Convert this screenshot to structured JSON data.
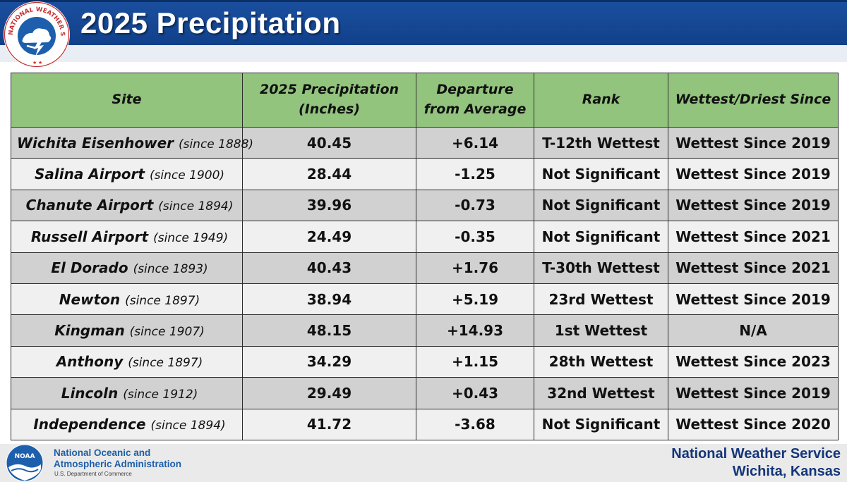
{
  "header": {
    "title": "2025 Precipitation",
    "logo_text": "NATIONAL WEATHER SERVICE"
  },
  "table": {
    "columns": [
      {
        "line1": "Site",
        "line2": ""
      },
      {
        "line1": "2025 Precipitation",
        "line2": "(Inches)"
      },
      {
        "line1": "Departure",
        "line2": "from Average"
      },
      {
        "line1": "Rank",
        "line2": ""
      },
      {
        "line1": "Wettest/Driest Since",
        "line2": ""
      }
    ],
    "rows": [
      {
        "site": "Wichita Eisenhower",
        "since": "(since 1888)",
        "precip": "40.45",
        "departure": "+6.14",
        "rank": "T-12th Wettest",
        "wettest_since": "Wettest Since 2019"
      },
      {
        "site": "Salina Airport",
        "since": "(since 1900)",
        "precip": "28.44",
        "departure": "-1.25",
        "rank": "Not Significant",
        "wettest_since": "Wettest Since 2019"
      },
      {
        "site": "Chanute Airport",
        "since": "(since 1894)",
        "precip": "39.96",
        "departure": "-0.73",
        "rank": "Not Significant",
        "wettest_since": "Wettest Since 2019"
      },
      {
        "site": "Russell Airport",
        "since": "(since 1949)",
        "precip": "24.49",
        "departure": "-0.35",
        "rank": "Not Significant",
        "wettest_since": "Wettest Since 2021"
      },
      {
        "site": "El Dorado",
        "since": "(since 1893)",
        "precip": "40.43",
        "departure": "+1.76",
        "rank": "T-30th Wettest",
        "wettest_since": "Wettest Since 2021"
      },
      {
        "site": "Newton",
        "since": "(since 1897)",
        "precip": "38.94",
        "departure": "+5.19",
        "rank": "23rd Wettest",
        "wettest_since": "Wettest Since 2019"
      },
      {
        "site": "Kingman",
        "since": "(since 1907)",
        "precip": "48.15",
        "departure": "+14.93",
        "rank": "1st Wettest",
        "wettest_since": "N/A"
      },
      {
        "site": "Anthony",
        "since": "(since 1897)",
        "precip": "34.29",
        "departure": "+1.15",
        "rank": "28th Wettest",
        "wettest_since": "Wettest Since 2023"
      },
      {
        "site": "Lincoln",
        "since": "(since 1912)",
        "precip": "29.49",
        "departure": "+0.43",
        "rank": "32nd Wettest",
        "wettest_since": "Wettest Since 2019"
      },
      {
        "site": "Independence",
        "since": "(since 1894)",
        "precip": "41.72",
        "departure": "-3.68",
        "rank": "Not Significant",
        "wettest_since": "Wettest Since 2020"
      }
    ]
  },
  "footer": {
    "noaa_logo_text": "NOAA",
    "noaa_line1": "National Oceanic and",
    "noaa_line2": "Atmospheric Administration",
    "noaa_dept": "U.S. Department of Commerce",
    "office_line1": "National Weather Service",
    "office_line2": "Wichita, Kansas"
  },
  "colors": {
    "header_blue": "#1a4f9e",
    "table_header_green": "#92c47e",
    "positive_departure": "#3d7d2a",
    "negative_departure": "#c06a10",
    "row_dark": "#d1d1d1",
    "row_light": "#f0f0f0",
    "footer_text_blue": "#14357a"
  }
}
